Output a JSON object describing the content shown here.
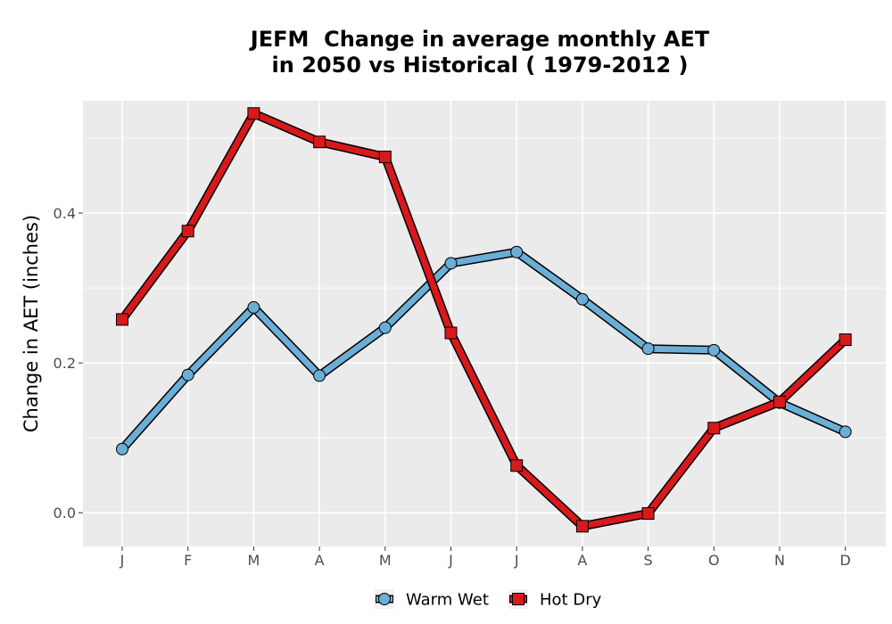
{
  "chart_data": {
    "type": "line",
    "title_line1": "JEFM  Change in average monthly AET",
    "title_line2": "in 2050 vs Historical ( 1979-2012 )",
    "xlabel": "",
    "ylabel": "Change in AET (inches)",
    "categories": [
      "J",
      "F",
      "M",
      "A",
      "M",
      "J",
      "J",
      "A",
      "S",
      "O",
      "N",
      "D"
    ],
    "ylim": [
      -0.045,
      0.55
    ],
    "yticks": [
      0.0,
      0.2,
      0.4
    ],
    "ytick_labels": [
      "0.0",
      "0.2",
      "0.4"
    ],
    "grid": true,
    "legend_position": "bottom",
    "series": [
      {
        "name": "Warm Wet",
        "marker": "circle",
        "color": "#6baed6",
        "values": [
          0.085,
          0.184,
          0.274,
          0.183,
          0.247,
          0.333,
          0.348,
          0.285,
          0.219,
          0.217,
          0.147,
          0.108
        ]
      },
      {
        "name": "Hot Dry",
        "marker": "square",
        "color": "#d7191c",
        "values": [
          0.258,
          0.376,
          0.533,
          0.495,
          0.475,
          0.24,
          0.063,
          -0.018,
          -0.001,
          0.113,
          0.148,
          0.231
        ]
      }
    ],
    "colors": {
      "panel_background": "#ebebeb",
      "grid": "#ffffff",
      "outline": "#000000"
    }
  }
}
